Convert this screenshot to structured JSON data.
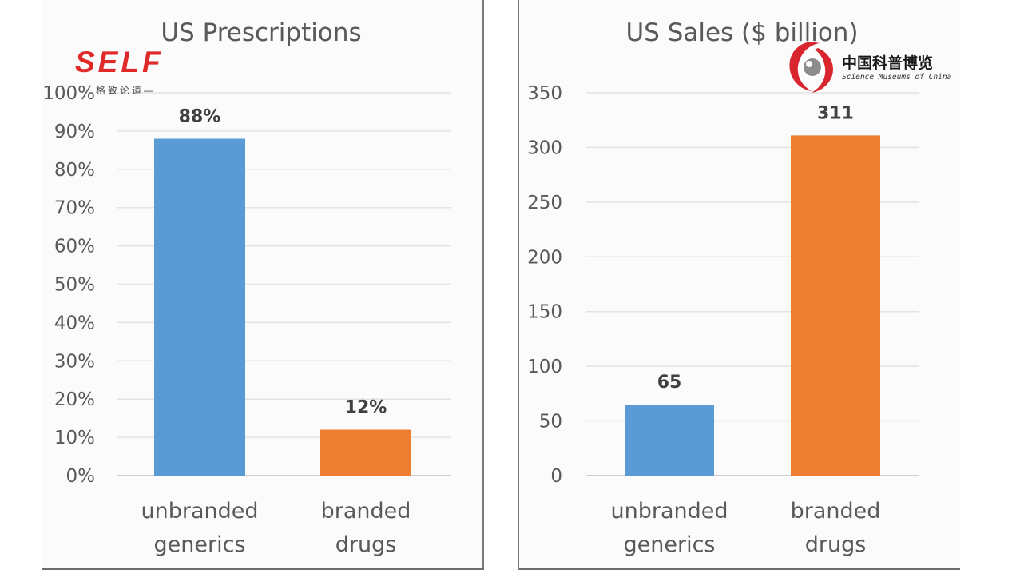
{
  "colors": {
    "generics": "#5b9bd5",
    "branded": "#ed7d31",
    "text": "#595959",
    "logo_red": "#e02a2a"
  },
  "chart_data": [
    {
      "type": "bar",
      "title": "US Prescriptions",
      "categories": [
        "unbranded generics",
        "branded drugs"
      ],
      "category_lines": [
        [
          "unbranded",
          "generics"
        ],
        [
          "branded",
          "drugs"
        ]
      ],
      "values": [
        88,
        12
      ],
      "data_labels": [
        "88%",
        "12%"
      ],
      "bar_colors": [
        "#5b9bd5",
        "#ed7d31"
      ],
      "ylim": [
        0,
        100
      ],
      "yticks": [
        0,
        10,
        20,
        30,
        40,
        50,
        60,
        70,
        80,
        90,
        100
      ],
      "ytick_labels": [
        "0%",
        "10%",
        "20%",
        "30%",
        "40%",
        "50%",
        "60%",
        "70%",
        "80%",
        "90%",
        "100%"
      ],
      "grid": true,
      "legend": "none"
    },
    {
      "type": "bar",
      "title": "US Sales ($ billion)",
      "categories": [
        "unbranded generics",
        "branded drugs"
      ],
      "category_lines": [
        [
          "unbranded",
          "generics"
        ],
        [
          "branded",
          "drugs"
        ]
      ],
      "values": [
        65,
        311
      ],
      "data_labels": [
        "65",
        "311"
      ],
      "bar_colors": [
        "#5b9bd5",
        "#ed7d31"
      ],
      "ylim": [
        0,
        350
      ],
      "yticks": [
        0,
        50,
        100,
        150,
        200,
        250,
        300,
        350
      ],
      "ytick_labels": [
        "0",
        "50",
        "100",
        "150",
        "200",
        "250",
        "300",
        "350"
      ],
      "grid": true,
      "legend": "none"
    }
  ],
  "logos": {
    "self_text": "SELF",
    "self_tagline": "格致论道—",
    "museum_cn": "中国科普博览",
    "museum_en": "Science Museums of China"
  }
}
